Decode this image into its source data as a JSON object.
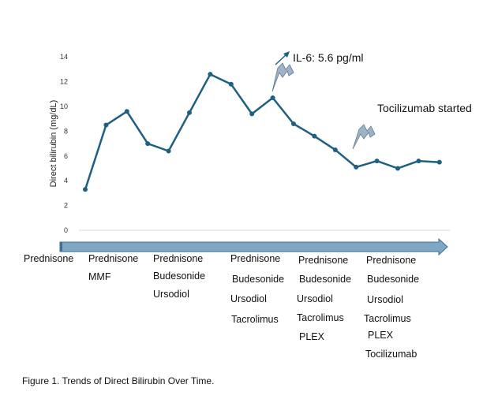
{
  "chart_data": {
    "type": "line",
    "title": "",
    "xlabel": "",
    "ylabel": "Direct bilirubin (mg/dL)",
    "ylim": [
      0,
      14
    ],
    "yticks": [
      0,
      2,
      4,
      6,
      8,
      10,
      12,
      14
    ],
    "grid": false,
    "series": [
      {
        "values": [
          3.3,
          8.5,
          9.6,
          7.0,
          6.4,
          9.5,
          12.6,
          11.8,
          9.4,
          10.7,
          8.6,
          7.6,
          6.5,
          5.1,
          5.6,
          5.0,
          5.6,
          5.5
        ]
      }
    ],
    "colors": {
      "line": "#1f5f80",
      "timeline": "#7fa7c4",
      "timeline_stroke": "#3e6f94",
      "bolt": "#9fb3c6"
    },
    "annotations": [
      {
        "text": "IL-6: 5.6 pg/ml",
        "icon": "lightning-bolt-icon"
      },
      {
        "text": "Tocilizumab started",
        "icon": "lightning-bolt-icon"
      }
    ],
    "medication_groups": [
      [
        "Prednisone"
      ],
      [
        "Prednisone",
        "MMF"
      ],
      [
        "Prednisone",
        "Budesonide",
        "Ursodiol"
      ],
      [
        "Prednisone",
        "Budesonide",
        "Ursodiol",
        "Tacrolimus"
      ],
      [
        "Prednisone",
        "Budesonide",
        "Ursodiol",
        "Tacrolimus",
        "PLEX"
      ],
      [
        "Prednisone",
        "Budesonide",
        "Ursodiol",
        "Tacrolimus",
        "PLEX",
        "Tocilizumab"
      ]
    ]
  },
  "caption": "Figure 1. Trends of Direct Bilirubin Over Time."
}
